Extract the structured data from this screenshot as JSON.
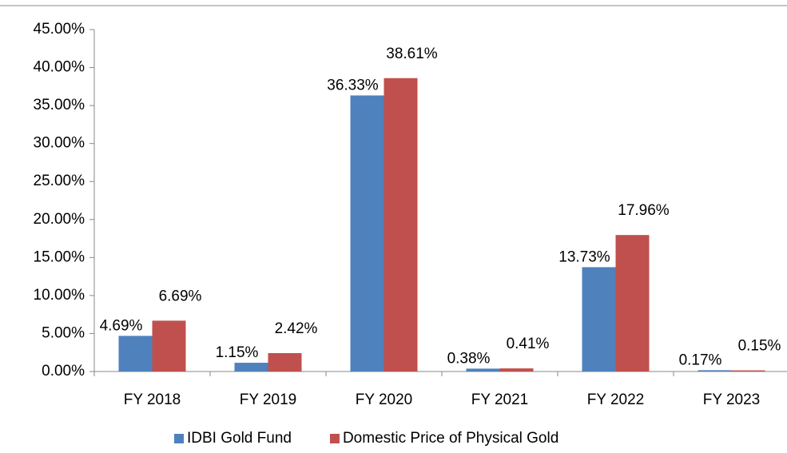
{
  "chart_data": {
    "type": "bar",
    "categories": [
      "FY 2018",
      "FY 2019",
      "FY 2020",
      "FY 2021",
      "FY 2022",
      "FY 2023"
    ],
    "series": [
      {
        "name": "IDBI Gold Fund",
        "color": "#4f81bd",
        "values": [
          4.69,
          1.15,
          36.33,
          0.38,
          13.73,
          0.17
        ],
        "value_labels": [
          "4.69%",
          "1.15%",
          "36.33%",
          "0.38%",
          "13.73%",
          "0.17%"
        ]
      },
      {
        "name": "Domestic Price of Physical Gold",
        "color": "#c0504d",
        "values": [
          6.69,
          2.42,
          38.61,
          0.41,
          17.96,
          0.15
        ],
        "value_labels": [
          "6.69%",
          "2.42%",
          "38.61%",
          "0.41%",
          "17.96%",
          "0.15%"
        ]
      }
    ],
    "ylim": [
      0,
      45
    ],
    "yticks": [
      {
        "value": 0,
        "label": "0.00%"
      },
      {
        "value": 5,
        "label": "5.00%"
      },
      {
        "value": 10,
        "label": "10.00%"
      },
      {
        "value": 15,
        "label": "15.00%"
      },
      {
        "value": 20,
        "label": "20.00%"
      },
      {
        "value": 25,
        "label": "25.00%"
      },
      {
        "value": 30,
        "label": "30.00%"
      },
      {
        "value": 35,
        "label": "35.00%"
      },
      {
        "value": 40,
        "label": "40.00%"
      },
      {
        "value": 45,
        "label": "45.00%"
      }
    ],
    "grid": false,
    "legend": "bottom"
  }
}
